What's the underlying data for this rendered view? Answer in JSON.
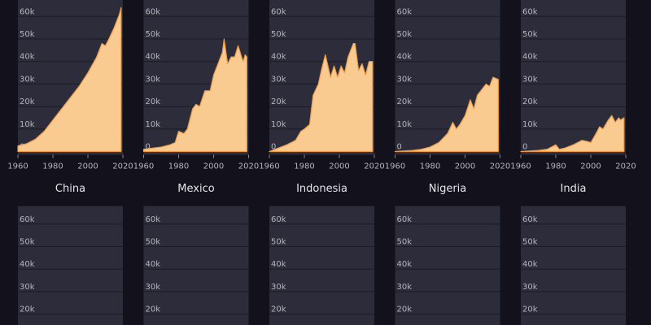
{
  "chart_data": [
    {
      "type": "area",
      "title": "China",
      "color": "#f9cb91",
      "edge_color": "#ee9a45",
      "grid": true,
      "x": [
        1960,
        1965,
        1970,
        1975,
        1980,
        1985,
        1990,
        1995,
        2000,
        2005,
        2008,
        2010,
        2012,
        2015,
        2018,
        2019
      ],
      "values": [
        2500,
        3500,
        5500,
        9000,
        14000,
        19000,
        24000,
        29000,
        35000,
        42000,
        48000,
        47000,
        50000,
        55000,
        61000,
        64000
      ],
      "xlim": [
        1960,
        2020
      ],
      "xticks": [
        1960,
        1980,
        2000,
        2020
      ],
      "ylim": [
        0,
        68000
      ],
      "yticks": [
        0,
        {
          "value": 10000,
          "label": "10k"
        },
        {
          "value": 20000,
          "label": "20k"
        },
        {
          "value": 30000,
          "label": "30k"
        },
        {
          "value": 40000,
          "label": "40k"
        },
        {
          "value": 50000,
          "label": "50k"
        },
        {
          "value": 60000,
          "label": "60k"
        }
      ]
    },
    {
      "type": "area",
      "title": "Mexico",
      "color": "#f9cb91",
      "edge_color": "#ee9a45",
      "grid": true,
      "x": [
        1960,
        1965,
        1970,
        1975,
        1978,
        1980,
        1983,
        1985,
        1988,
        1990,
        1992,
        1995,
        1998,
        2000,
        2003,
        2005,
        2006,
        2008,
        2010,
        2012,
        2014,
        2016,
        2017,
        2018,
        2019
      ],
      "values": [
        1000,
        1500,
        2000,
        3000,
        4000,
        9000,
        8000,
        10000,
        19000,
        21000,
        20000,
        27000,
        27000,
        34000,
        40000,
        44000,
        50000,
        39000,
        42000,
        42000,
        47000,
        42000,
        40000,
        43000,
        42000
      ],
      "xlim": [
        1960,
        2020
      ],
      "xticks": [
        1960,
        1980,
        2000,
        2020
      ],
      "ylim": [
        0,
        68000
      ],
      "yticks": [
        0,
        {
          "value": 10000,
          "label": "10k"
        },
        {
          "value": 20000,
          "label": "20k"
        },
        {
          "value": 30000,
          "label": "30k"
        },
        {
          "value": 40000,
          "label": "40k"
        },
        {
          "value": 50000,
          "label": "50k"
        },
        {
          "value": 60000,
          "label": "60k"
        }
      ]
    },
    {
      "type": "area",
      "title": "Indonesia",
      "color": "#f9cb91",
      "edge_color": "#ee9a45",
      "grid": true,
      "x": [
        1960,
        1965,
        1970,
        1975,
        1978,
        1980,
        1983,
        1985,
        1988,
        1990,
        1992,
        1995,
        1997,
        1999,
        2001,
        2003,
        2005,
        2008,
        2009,
        2011,
        2013,
        2015,
        2017,
        2019
      ],
      "values": [
        0,
        1500,
        3000,
        5000,
        9000,
        10000,
        12000,
        25000,
        30000,
        37000,
        43000,
        33000,
        38000,
        33000,
        38000,
        35000,
        42000,
        48000,
        48000,
        36000,
        39000,
        34000,
        40000,
        40000
      ],
      "xlim": [
        1960,
        2020
      ],
      "xticks": [
        1960,
        1980,
        2000,
        2020
      ],
      "ylim": [
        0,
        68000
      ],
      "yticks": [
        0,
        {
          "value": 10000,
          "label": "10k"
        },
        {
          "value": 20000,
          "label": "20k"
        },
        {
          "value": 30000,
          "label": "30k"
        },
        {
          "value": 40000,
          "label": "40k"
        },
        {
          "value": 50000,
          "label": "50k"
        },
        {
          "value": 60000,
          "label": "60k"
        }
      ]
    },
    {
      "type": "area",
      "title": "Nigeria",
      "color": "#f9cb91",
      "edge_color": "#ee9a45",
      "grid": true,
      "x": [
        1960,
        1970,
        1975,
        1980,
        1985,
        1990,
        1993,
        1995,
        1997,
        2000,
        2003,
        2005,
        2007,
        2010,
        2012,
        2014,
        2016,
        2019
      ],
      "values": [
        0,
        500,
        1000,
        2000,
        4000,
        8000,
        13000,
        10000,
        12000,
        16000,
        23000,
        19000,
        25000,
        28000,
        30000,
        29000,
        33000,
        32000
      ],
      "xlim": [
        1960,
        2020
      ],
      "xticks": [
        1960,
        1980,
        2000,
        2020
      ],
      "ylim": [
        0,
        68000
      ],
      "yticks": [
        0,
        {
          "value": 10000,
          "label": "10k"
        },
        {
          "value": 20000,
          "label": "20k"
        },
        {
          "value": 30000,
          "label": "30k"
        },
        {
          "value": 40000,
          "label": "40k"
        },
        {
          "value": 50000,
          "label": "50k"
        },
        {
          "value": 60000,
          "label": "60k"
        }
      ]
    },
    {
      "type": "area",
      "title": "India",
      "color": "#f9cb91",
      "edge_color": "#ee9a45",
      "grid": true,
      "x": [
        1960,
        1970,
        1975,
        1980,
        1982,
        1985,
        1990,
        1995,
        1998,
        2000,
        2003,
        2005,
        2007,
        2010,
        2012,
        2014,
        2016,
        2017,
        2019
      ],
      "values": [
        0,
        500,
        1000,
        3000,
        1000,
        1500,
        3000,
        5000,
        4500,
        4000,
        8000,
        11000,
        10000,
        14000,
        16000,
        13000,
        15000,
        14000,
        15000
      ],
      "xlim": [
        1960,
        2020
      ],
      "xticks": [
        1960,
        1980,
        2000,
        2020
      ],
      "ylim": [
        0,
        68000
      ],
      "yticks": [
        0,
        {
          "value": 10000,
          "label": "10k"
        },
        {
          "value": 20000,
          "label": "20k"
        },
        {
          "value": 30000,
          "label": "30k"
        },
        {
          "value": 40000,
          "label": "40k"
        },
        {
          "value": 50000,
          "label": "50k"
        },
        {
          "value": 60000,
          "label": "60k"
        }
      ]
    },
    {
      "type": "area",
      "grid": true,
      "ylim": [
        0,
        68000
      ],
      "yticks": [
        {
          "value": 20000,
          "label": "20k"
        },
        {
          "value": 30000,
          "label": "30k"
        },
        {
          "value": 40000,
          "label": "40k"
        },
        {
          "value": 50000,
          "label": "50k"
        },
        {
          "value": 60000,
          "label": "60k"
        }
      ]
    },
    {
      "type": "area",
      "grid": true,
      "ylim": [
        0,
        68000
      ],
      "yticks": [
        {
          "value": 20000,
          "label": "20k"
        },
        {
          "value": 30000,
          "label": "30k"
        },
        {
          "value": 40000,
          "label": "40k"
        },
        {
          "value": 50000,
          "label": "50k"
        },
        {
          "value": 60000,
          "label": "60k"
        }
      ]
    },
    {
      "type": "area",
      "grid": true,
      "ylim": [
        0,
        68000
      ],
      "yticks": [
        {
          "value": 20000,
          "label": "20k"
        },
        {
          "value": 30000,
          "label": "30k"
        },
        {
          "value": 40000,
          "label": "40k"
        },
        {
          "value": 50000,
          "label": "50k"
        },
        {
          "value": 60000,
          "label": "60k"
        }
      ]
    },
    {
      "type": "area",
      "grid": true,
      "ylim": [
        0,
        68000
      ],
      "yticks": [
        {
          "value": 20000,
          "label": "20k"
        },
        {
          "value": 30000,
          "label": "30k"
        },
        {
          "value": 40000,
          "label": "40k"
        },
        {
          "value": 50000,
          "label": "50k"
        },
        {
          "value": 60000,
          "label": "60k"
        }
      ]
    },
    {
      "type": "area",
      "grid": true,
      "ylim": [
        0,
        68000
      ],
      "yticks": [
        {
          "value": 20000,
          "label": "20k"
        },
        {
          "value": 30000,
          "label": "30k"
        },
        {
          "value": 40000,
          "label": "40k"
        },
        {
          "value": 50000,
          "label": "50k"
        },
        {
          "value": 60000,
          "label": "60k"
        }
      ]
    }
  ]
}
